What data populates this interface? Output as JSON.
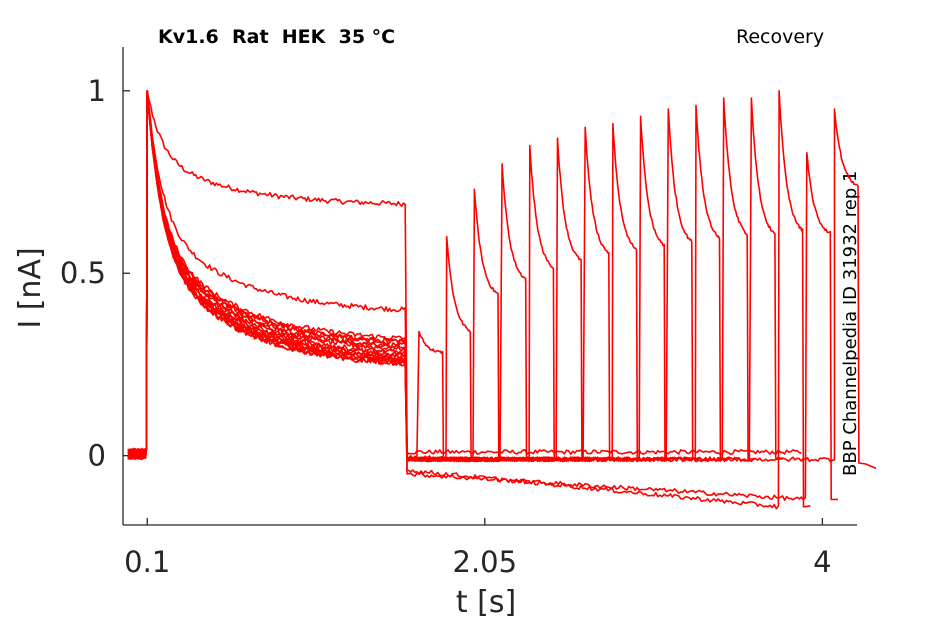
{
  "header": {
    "title": "Kv1.6  Rat  HEK  35 °C",
    "protocol": "Recovery"
  },
  "side_label": "BBP Channelpedia ID 31932 rep 1",
  "colors": {
    "trace": "#ff0000",
    "axis": "#262626"
  },
  "chart_data": {
    "type": "line",
    "xlabel": "t [s]",
    "ylabel": "I [nA]",
    "xticks": [
      {
        "value": 0.1,
        "label": "0.1"
      },
      {
        "value": 2.05,
        "label": "2.05"
      },
      {
        "value": 4.0,
        "label": "4"
      }
    ],
    "yticks": [
      {
        "value": 0,
        "label": "0"
      },
      {
        "value": 0.5,
        "label": "0.5"
      },
      {
        "value": 1,
        "label": "1"
      }
    ],
    "xlim": [
      -0.04,
      4.2
    ],
    "ylim": [
      -0.19,
      1.12
    ],
    "grid": false,
    "legend": "none",
    "baseline_start": -0.01,
    "peak_time": 0.1,
    "step_end": 1.6,
    "sweeps": [
      {
        "plateau": 0.685,
        "tail": 0.01,
        "recovery_time": null,
        "recovery_peak": null,
        "recovery_end": null,
        "post_tail": null
      },
      {
        "plateau": 0.39,
        "tail": -0.005,
        "recovery_time": 1.67,
        "recovery_peak": 0.34,
        "recovery_end": 0.28,
        "post_tail": -0.01
      },
      {
        "plateau": 0.3,
        "tail": -0.005,
        "recovery_time": 1.83,
        "recovery_peak": 0.6,
        "recovery_end": 0.33,
        "post_tail": -0.01
      },
      {
        "plateau": 0.29,
        "tail": -0.01,
        "recovery_time": 1.99,
        "recovery_peak": 0.73,
        "recovery_end": 0.43,
        "post_tail": -0.01
      },
      {
        "plateau": 0.285,
        "tail": -0.01,
        "recovery_time": 2.15,
        "recovery_peak": 0.8,
        "recovery_end": 0.47,
        "post_tail": -0.01
      },
      {
        "plateau": 0.28,
        "tail": -0.01,
        "recovery_time": 2.31,
        "recovery_peak": 0.85,
        "recovery_end": 0.5,
        "post_tail": -0.01
      },
      {
        "plateau": 0.3,
        "tail": -0.01,
        "recovery_time": 2.47,
        "recovery_peak": 0.87,
        "recovery_end": 0.52,
        "post_tail": -0.01
      },
      {
        "plateau": 0.31,
        "tail": -0.01,
        "recovery_time": 2.63,
        "recovery_peak": 0.9,
        "recovery_end": 0.54,
        "post_tail": -0.01
      },
      {
        "plateau": 0.27,
        "tail": -0.01,
        "recovery_time": 2.79,
        "recovery_peak": 0.91,
        "recovery_end": 0.55,
        "post_tail": -0.01
      },
      {
        "plateau": 0.265,
        "tail": -0.01,
        "recovery_time": 2.95,
        "recovery_peak": 0.93,
        "recovery_end": 0.56,
        "post_tail": -0.01
      },
      {
        "plateau": 0.26,
        "tail": -0.01,
        "recovery_time": 3.11,
        "recovery_peak": 0.95,
        "recovery_end": 0.57,
        "post_tail": -0.01
      },
      {
        "plateau": 0.255,
        "tail": -0.01,
        "recovery_time": 3.27,
        "recovery_peak": 0.96,
        "recovery_end": 0.58,
        "post_tail": -0.01
      },
      {
        "plateau": 0.25,
        "tail": -0.01,
        "recovery_time": 3.43,
        "recovery_peak": 0.98,
        "recovery_end": 0.59,
        "post_tail": -0.01
      },
      {
        "plateau": 0.25,
        "tail": -0.01,
        "recovery_time": 3.59,
        "recovery_peak": 0.98,
        "recovery_end": 0.59,
        "post_tail": -0.01
      },
      {
        "plateau": 0.245,
        "tail": -0.04,
        "recovery_time": 3.75,
        "recovery_peak": 1.0,
        "recovery_end": 0.6,
        "post_tail": -0.14
      },
      {
        "plateau": 0.24,
        "tail": -0.05,
        "recovery_time": 3.91,
        "recovery_peak": 0.83,
        "recovery_end": 0.6,
        "post_tail": -0.12
      },
      {
        "plateau": 0.24,
        "tail": -0.01,
        "recovery_time": 4.07,
        "recovery_peak": 0.95,
        "recovery_end": 0.73,
        "post_tail": -0.02
      }
    ]
  }
}
